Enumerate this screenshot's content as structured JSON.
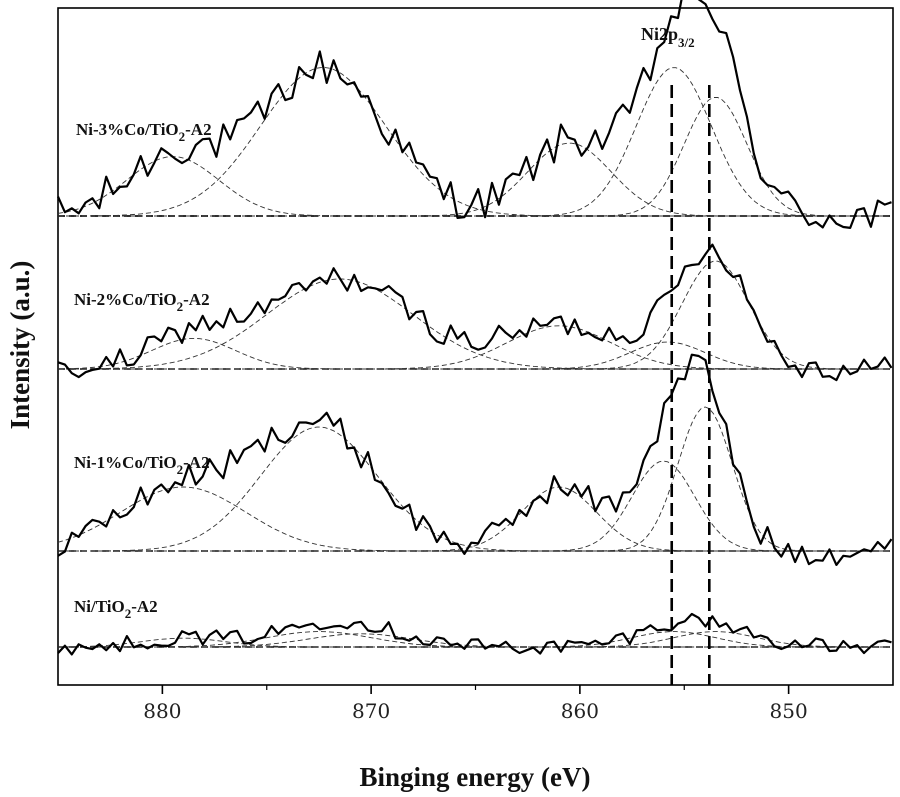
{
  "chart_data": {
    "type": "line",
    "title": "",
    "xlabel": "Binging energy (eV)",
    "ylabel": "Intensity (a.u.)",
    "xlim": [
      885,
      845
    ],
    "x_reversed": true,
    "xticks": [
      880,
      870,
      860,
      850
    ],
    "yticks": [],
    "annotation": {
      "main": "Ni2p",
      "sub": "3/2"
    },
    "reference_lines_ev": [
      855.6,
      853.8
    ],
    "series": [
      {
        "name": "Ni-3%Co/TiO2-A2",
        "label_main": "Ni-3%Co/TiO",
        "label_sub": "2",
        "label_tail": "-A2",
        "peaks": [
          {
            "center": 879.5,
            "height": 0.22,
            "width": 2.2
          },
          {
            "center": 872.3,
            "height": 0.55,
            "width": 3.0
          },
          {
            "center": 860.5,
            "height": 0.27,
            "width": 2.0
          },
          {
            "center": 855.5,
            "height": 0.55,
            "width": 1.8
          },
          {
            "center": 853.5,
            "height": 0.44,
            "width": 1.5
          }
        ]
      },
      {
        "name": "Ni-2%Co/TiO2-A2",
        "label_main": "Ni-2%Co/TiO",
        "label_sub": "2",
        "label_tail": "-A2",
        "peaks": [
          {
            "center": 878.5,
            "height": 0.17,
            "width": 2.0
          },
          {
            "center": 871.5,
            "height": 0.5,
            "width": 3.5
          },
          {
            "center": 861.0,
            "height": 0.24,
            "width": 2.5
          },
          {
            "center": 855.8,
            "height": 0.15,
            "width": 1.8
          },
          {
            "center": 853.5,
            "height": 0.6,
            "width": 1.6
          }
        ]
      },
      {
        "name": "Ni-1%Co/TiO2-A2",
        "label_main": "Ni-1%Co/TiO",
        "label_sub": "2",
        "label_tail": "-A2",
        "peaks": [
          {
            "center": 879.0,
            "height": 0.32,
            "width": 3.0
          },
          {
            "center": 872.5,
            "height": 0.62,
            "width": 2.8
          },
          {
            "center": 861.0,
            "height": 0.32,
            "width": 1.8
          },
          {
            "center": 856.0,
            "height": 0.45,
            "width": 1.5
          },
          {
            "center": 854.0,
            "height": 0.72,
            "width": 1.3
          }
        ]
      },
      {
        "name": "Ni/TiO2-A2",
        "label_main": "Ni/TiO",
        "label_sub": "2",
        "label_tail": "-A2",
        "peaks": [
          {
            "center": 879.0,
            "height": 0.04,
            "width": 2.0
          },
          {
            "center": 872.5,
            "height": 0.07,
            "width": 2.5
          },
          {
            "center": 870.5,
            "height": 0.06,
            "width": 2.5
          },
          {
            "center": 855.5,
            "height": 0.07,
            "width": 2.0
          },
          {
            "center": 853.5,
            "height": 0.07,
            "width": 2.0
          }
        ]
      }
    ]
  }
}
